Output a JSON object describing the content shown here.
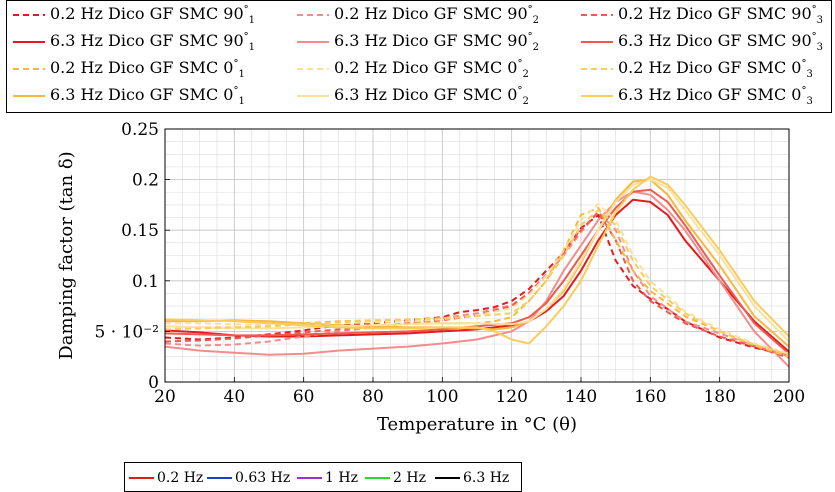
{
  "chart_data": {
    "type": "line",
    "xlabel": "Temperature in °C (θ)",
    "ylabel": "Damping factor (tan δ)",
    "xlim": [
      20,
      200
    ],
    "ylim": [
      0,
      0.25
    ],
    "xticks": [
      20,
      40,
      60,
      80,
      100,
      120,
      140,
      160,
      180,
      200
    ],
    "yticks": [
      0,
      0.05,
      0.1,
      0.15,
      0.2,
      0.25
    ],
    "xtick_labels": [
      "20",
      "40",
      "60",
      "80",
      "100",
      "120",
      "140",
      "160",
      "180",
      "200"
    ],
    "ytick_labels": [
      "0",
      "5 · 10⁻²",
      "0.1",
      "0.15",
      "0.2",
      "0.25"
    ],
    "grid": true,
    "legend_position": "top",
    "series": [
      {
        "name": "0.2 Hz Dico GF SMC 90°1",
        "color": "#e41a1c",
        "dash": true,
        "x": [
          20,
          30,
          40,
          50,
          60,
          70,
          80,
          90,
          100,
          105,
          110,
          115,
          120,
          125,
          130,
          135,
          140,
          145,
          150,
          155,
          160,
          165,
          170,
          180,
          190,
          200
        ],
        "y": [
          0.044,
          0.042,
          0.044,
          0.047,
          0.051,
          0.056,
          0.058,
          0.061,
          0.064,
          0.069,
          0.071,
          0.074,
          0.08,
          0.092,
          0.11,
          0.128,
          0.152,
          0.165,
          0.12,
          0.095,
          0.082,
          0.072,
          0.06,
          0.044,
          0.034,
          0.026
        ]
      },
      {
        "name": "6.3 Hz Dico GF SMC 90°1",
        "color": "#e41a1c",
        "dash": false,
        "x": [
          20,
          30,
          40,
          50,
          60,
          70,
          80,
          90,
          100,
          110,
          115,
          120,
          125,
          130,
          135,
          140,
          145,
          150,
          155,
          160,
          165,
          170,
          180,
          190,
          200
        ],
        "y": [
          0.051,
          0.049,
          0.046,
          0.045,
          0.045,
          0.046,
          0.047,
          0.048,
          0.05,
          0.052,
          0.054,
          0.056,
          0.06,
          0.07,
          0.085,
          0.11,
          0.14,
          0.165,
          0.18,
          0.178,
          0.165,
          0.14,
          0.1,
          0.06,
          0.03
        ]
      },
      {
        "name": "0.2 Hz Dico GF SMC 90°2",
        "color": "#f58c8c",
        "dash": true,
        "x": [
          20,
          30,
          40,
          50,
          60,
          70,
          80,
          90,
          100,
          110,
          120,
          125,
          130,
          135,
          140,
          145,
          150,
          155,
          160,
          170,
          180,
          190,
          200
        ],
        "y": [
          0.038,
          0.036,
          0.037,
          0.04,
          0.045,
          0.05,
          0.054,
          0.058,
          0.063,
          0.068,
          0.076,
          0.088,
          0.105,
          0.125,
          0.148,
          0.168,
          0.15,
          0.11,
          0.085,
          0.06,
          0.048,
          0.036,
          0.026
        ]
      },
      {
        "name": "6.3 Hz Dico GF SMC 90°2",
        "color": "#f58c8c",
        "dash": false,
        "x": [
          20,
          30,
          40,
          50,
          60,
          70,
          80,
          90,
          100,
          110,
          120,
          125,
          130,
          135,
          140,
          145,
          150,
          155,
          160,
          165,
          170,
          180,
          190,
          200
        ],
        "y": [
          0.035,
          0.031,
          0.029,
          0.027,
          0.028,
          0.031,
          0.033,
          0.035,
          0.038,
          0.042,
          0.05,
          0.06,
          0.08,
          0.11,
          0.135,
          0.16,
          0.178,
          0.188,
          0.185,
          0.17,
          0.15,
          0.1,
          0.05,
          0.015
        ]
      },
      {
        "name": "0.2 Hz Dico GF SMC 90°3",
        "color": "#ee5a50",
        "dash": true,
        "x": [
          20,
          30,
          40,
          50,
          60,
          70,
          80,
          90,
          100,
          110,
          120,
          125,
          130,
          135,
          140,
          145,
          150,
          155,
          160,
          170,
          180,
          190,
          200
        ],
        "y": [
          0.04,
          0.041,
          0.043,
          0.046,
          0.049,
          0.052,
          0.055,
          0.058,
          0.061,
          0.066,
          0.075,
          0.088,
          0.106,
          0.128,
          0.15,
          0.168,
          0.14,
          0.1,
          0.08,
          0.058,
          0.045,
          0.035,
          0.024
        ]
      },
      {
        "name": "6.3 Hz Dico GF SMC 90°3",
        "color": "#ee5a50",
        "dash": false,
        "x": [
          20,
          30,
          40,
          50,
          60,
          70,
          80,
          90,
          100,
          110,
          120,
          125,
          130,
          135,
          140,
          145,
          150,
          155,
          160,
          165,
          170,
          180,
          190,
          200
        ],
        "y": [
          0.048,
          0.047,
          0.046,
          0.046,
          0.047,
          0.048,
          0.049,
          0.05,
          0.052,
          0.055,
          0.058,
          0.064,
          0.078,
          0.1,
          0.125,
          0.15,
          0.172,
          0.188,
          0.19,
          0.178,
          0.155,
          0.105,
          0.058,
          0.028
        ]
      },
      {
        "name": "0.2 Hz Dico GF SMC 0°1",
        "color": "#f6b93b",
        "dash": true,
        "x": [
          20,
          30,
          40,
          50,
          60,
          70,
          80,
          90,
          100,
          110,
          115,
          120,
          125,
          130,
          135,
          140,
          145,
          150,
          155,
          160,
          170,
          180,
          190,
          200
        ],
        "y": [
          0.055,
          0.054,
          0.054,
          0.055,
          0.058,
          0.06,
          0.061,
          0.06,
          0.058,
          0.058,
          0.06,
          0.064,
          0.08,
          0.1,
          0.13,
          0.165,
          0.172,
          0.14,
          0.11,
          0.09,
          0.065,
          0.05,
          0.036,
          0.025
        ]
      },
      {
        "name": "6.3 Hz Dico GF SMC 0°1",
        "color": "#f6b93b",
        "dash": false,
        "x": [
          20,
          30,
          40,
          50,
          60,
          70,
          80,
          90,
          100,
          110,
          115,
          120,
          125,
          130,
          135,
          140,
          145,
          150,
          155,
          160,
          165,
          170,
          180,
          190,
          200
        ],
        "y": [
          0.06,
          0.06,
          0.061,
          0.06,
          0.058,
          0.056,
          0.055,
          0.054,
          0.054,
          0.053,
          0.052,
          0.054,
          0.06,
          0.072,
          0.09,
          0.118,
          0.15,
          0.18,
          0.198,
          0.2,
          0.185,
          0.16,
          0.115,
          0.065,
          0.035
        ]
      },
      {
        "name": "0.2 Hz Dico GF SMC 0°2",
        "color": "#fbe0a0",
        "dash": true,
        "x": [
          20,
          30,
          40,
          50,
          60,
          70,
          80,
          90,
          100,
          110,
          120,
          125,
          130,
          135,
          140,
          145,
          150,
          155,
          160,
          170,
          180,
          190,
          200
        ],
        "y": [
          0.058,
          0.058,
          0.057,
          0.056,
          0.057,
          0.058,
          0.059,
          0.06,
          0.062,
          0.066,
          0.073,
          0.086,
          0.105,
          0.13,
          0.16,
          0.176,
          0.16,
          0.125,
          0.1,
          0.07,
          0.052,
          0.038,
          0.028
        ]
      },
      {
        "name": "6.3 Hz Dico GF SMC 0°2",
        "color": "#fbe0a0",
        "dash": false,
        "x": [
          20,
          30,
          40,
          50,
          60,
          70,
          80,
          90,
          100,
          110,
          120,
          125,
          130,
          135,
          140,
          145,
          150,
          155,
          160,
          165,
          170,
          180,
          190,
          200
        ],
        "y": [
          0.055,
          0.054,
          0.053,
          0.053,
          0.054,
          0.055,
          0.056,
          0.057,
          0.058,
          0.058,
          0.057,
          0.06,
          0.072,
          0.092,
          0.12,
          0.15,
          0.178,
          0.195,
          0.2,
          0.192,
          0.17,
          0.125,
          0.075,
          0.04
        ]
      },
      {
        "name": "0.2 Hz Dico GF SMC 0°3",
        "color": "#f9cd5c",
        "dash": true,
        "x": [
          20,
          30,
          40,
          50,
          60,
          70,
          80,
          90,
          100,
          110,
          120,
          125,
          130,
          135,
          140,
          145,
          150,
          155,
          160,
          170,
          180,
          190,
          200
        ],
        "y": [
          0.052,
          0.053,
          0.054,
          0.055,
          0.057,
          0.059,
          0.061,
          0.062,
          0.063,
          0.065,
          0.068,
          0.08,
          0.1,
          0.125,
          0.155,
          0.17,
          0.155,
          0.12,
          0.095,
          0.068,
          0.05,
          0.037,
          0.027
        ]
      },
      {
        "name": "6.3 Hz Dico GF SMC 0°3",
        "color": "#f9cd5c",
        "dash": false,
        "x": [
          20,
          30,
          40,
          50,
          60,
          70,
          80,
          90,
          100,
          110,
          115,
          120,
          125,
          130,
          135,
          140,
          145,
          150,
          155,
          160,
          165,
          170,
          180,
          190,
          200
        ],
        "y": [
          0.062,
          0.061,
          0.06,
          0.058,
          0.056,
          0.054,
          0.053,
          0.053,
          0.054,
          0.054,
          0.05,
          0.042,
          0.038,
          0.055,
          0.075,
          0.1,
          0.135,
          0.168,
          0.19,
          0.203,
          0.195,
          0.175,
          0.13,
          0.08,
          0.045
        ]
      }
    ]
  },
  "legend_top": {
    "items": [
      {
        "label": "0.2 Hz Dico GF SMC 90",
        "sup": "°",
        "sub": "1"
      },
      {
        "label": "0.2 Hz Dico GF SMC 90",
        "sup": "°",
        "sub": "2"
      },
      {
        "label": "0.2 Hz Dico GF SMC 90",
        "sup": "°",
        "sub": "3"
      },
      {
        "label": "6.3 Hz Dico GF SMC 90",
        "sup": "°",
        "sub": "1"
      },
      {
        "label": "6.3 Hz Dico GF SMC 90",
        "sup": "°",
        "sub": "2"
      },
      {
        "label": "6.3 Hz Dico GF SMC 90",
        "sup": "°",
        "sub": "3"
      },
      {
        "label": "0.2 Hz Dico GF SMC 0",
        "sup": "°",
        "sub": "1"
      },
      {
        "label": "0.2 Hz Dico GF SMC 0",
        "sup": "°",
        "sub": "2"
      },
      {
        "label": "0.2 Hz Dico GF SMC 0",
        "sup": "°",
        "sub": "3"
      },
      {
        "label": "6.3 Hz Dico GF SMC 0",
        "sup": "°",
        "sub": "1"
      },
      {
        "label": "6.3 Hz Dico GF SMC 0",
        "sup": "°",
        "sub": "2"
      },
      {
        "label": "6.3 Hz Dico GF SMC 0",
        "sup": "°",
        "sub": "3"
      }
    ]
  },
  "legend_bottom": {
    "items": [
      {
        "label": "0.2 Hz",
        "color": "#e41a1c"
      },
      {
        "label": "0.63 Hz",
        "color": "#1f3fd0"
      },
      {
        "label": "1 Hz",
        "color": "#9b30d9"
      },
      {
        "label": "2 Hz",
        "color": "#22dd22"
      },
      {
        "label": "6.3 Hz",
        "color": "#000000"
      }
    ]
  }
}
